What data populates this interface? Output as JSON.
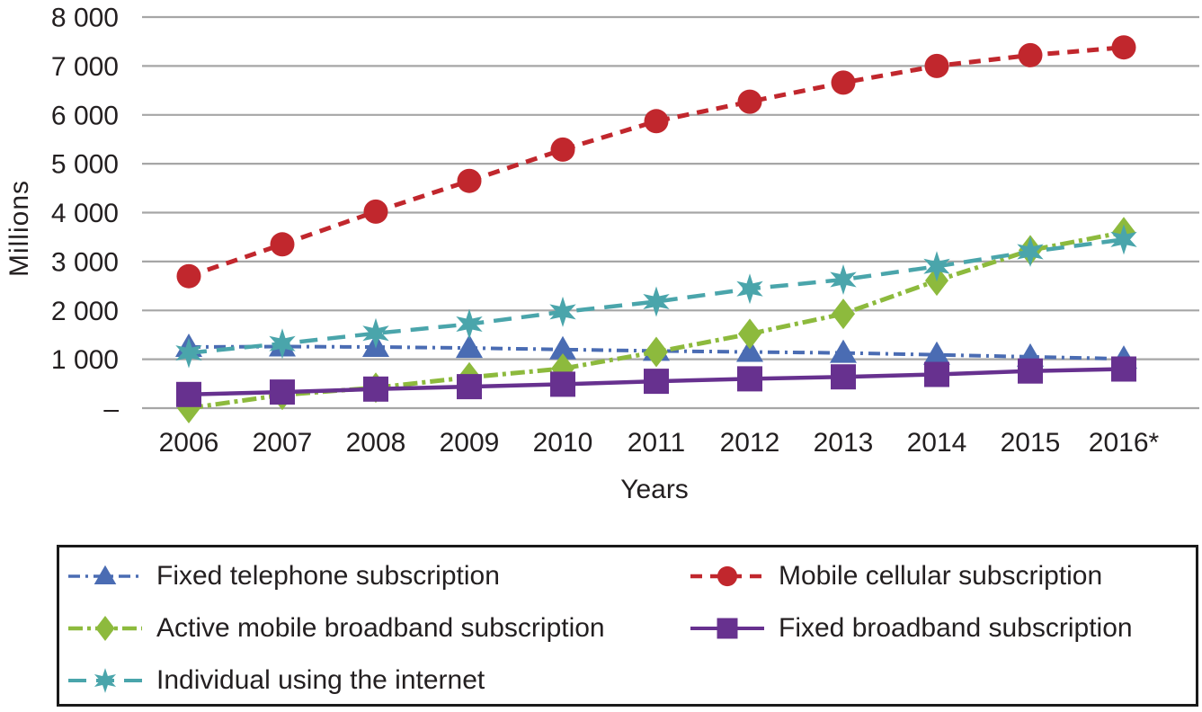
{
  "chart_data": {
    "type": "line",
    "title": "",
    "xlabel": "Years",
    "ylabel": "Millions",
    "x": [
      "2006",
      "2007",
      "2008",
      "2009",
      "2010",
      "2011",
      "2012",
      "2013",
      "2014",
      "2015",
      "2016*"
    ],
    "ylim": [
      0,
      8000
    ],
    "ytick_step": 1000,
    "ytick_labels": [
      "–",
      "1 000",
      "2 000",
      "3 000",
      "4 000",
      "5 000",
      "6 000",
      "7 000",
      "8 000"
    ],
    "grid": "horizontal",
    "legend_position": "bottom-boxed",
    "units": "millions",
    "series": [
      {
        "name": "Fixed telephone subscription",
        "color": "#4A6CB3",
        "marker": "triangle",
        "line": "dash-dot",
        "values": [
          1250,
          1260,
          1250,
          1230,
          1200,
          1170,
          1150,
          1130,
          1090,
          1050,
          1010
        ]
      },
      {
        "name": "Mobile cellular subscription",
        "color": "#C1272D",
        "marker": "circle",
        "line": "dashed",
        "values": [
          2700,
          3350,
          4020,
          4650,
          5290,
          5870,
          6270,
          6660,
          7000,
          7220,
          7380
        ]
      },
      {
        "name": "Active mobile broadband subscription",
        "color": "#8DBA3D",
        "marker": "diamond",
        "line": "long-dash-dot",
        "values": [
          0,
          270,
          420,
          630,
          810,
          1150,
          1520,
          1930,
          2610,
          3230,
          3600
        ]
      },
      {
        "name": "Fixed broadband subscription",
        "color": "#67318F",
        "marker": "square",
        "line": "solid",
        "values": [
          280,
          330,
          390,
          440,
          490,
          550,
          600,
          640,
          690,
          760,
          800
        ]
      },
      {
        "name": "Individual using the internet",
        "color": "#4AA5AB",
        "marker": "star",
        "line": "long-dash",
        "values": [
          1130,
          1320,
          1530,
          1720,
          1970,
          2180,
          2440,
          2630,
          2900,
          3200,
          3450
        ]
      }
    ],
    "legend_layout": {
      "rows": [
        [
          0,
          1
        ],
        [
          2,
          3
        ],
        [
          4,
          -1
        ]
      ]
    },
    "colors": {
      "grid": "#A6A6A6",
      "text": "#231F20",
      "legend_border": "#1A1A1A",
      "background": "#FFFFFF"
    }
  }
}
